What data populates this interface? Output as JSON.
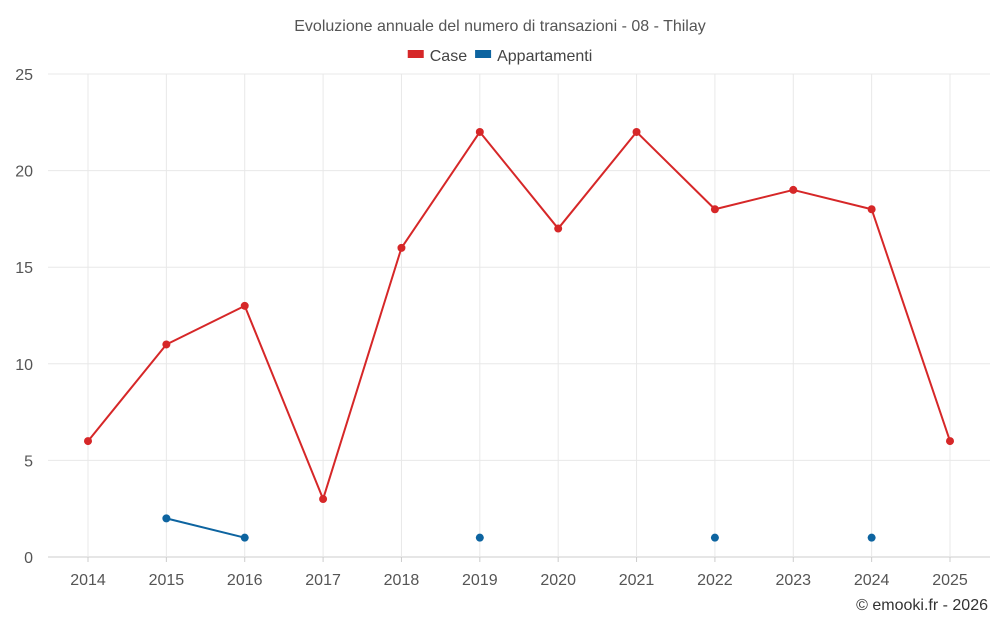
{
  "chart_data": {
    "type": "line",
    "title": "Evoluzione annuale del numero di transazioni - 08 - Thilay",
    "categories": [
      "2014",
      "2015",
      "2016",
      "2017",
      "2018",
      "2019",
      "2020",
      "2021",
      "2022",
      "2023",
      "2024",
      "2025"
    ],
    "ylim": [
      0,
      25
    ],
    "yticks": [
      "0",
      "5",
      "10",
      "15",
      "20",
      "25"
    ],
    "grid": true,
    "legend_position": "top-center",
    "series": [
      {
        "name": "Case",
        "color": "#d62728",
        "values": [
          6,
          11,
          13,
          3,
          16,
          22,
          17,
          22,
          18,
          19,
          18,
          6
        ]
      },
      {
        "name": "Appartamenti",
        "color": "#0d64a0",
        "values": [
          null,
          2,
          1,
          null,
          null,
          1,
          null,
          null,
          1,
          null,
          1,
          null
        ]
      }
    ]
  },
  "credit": "© emooki.fr - 2026"
}
